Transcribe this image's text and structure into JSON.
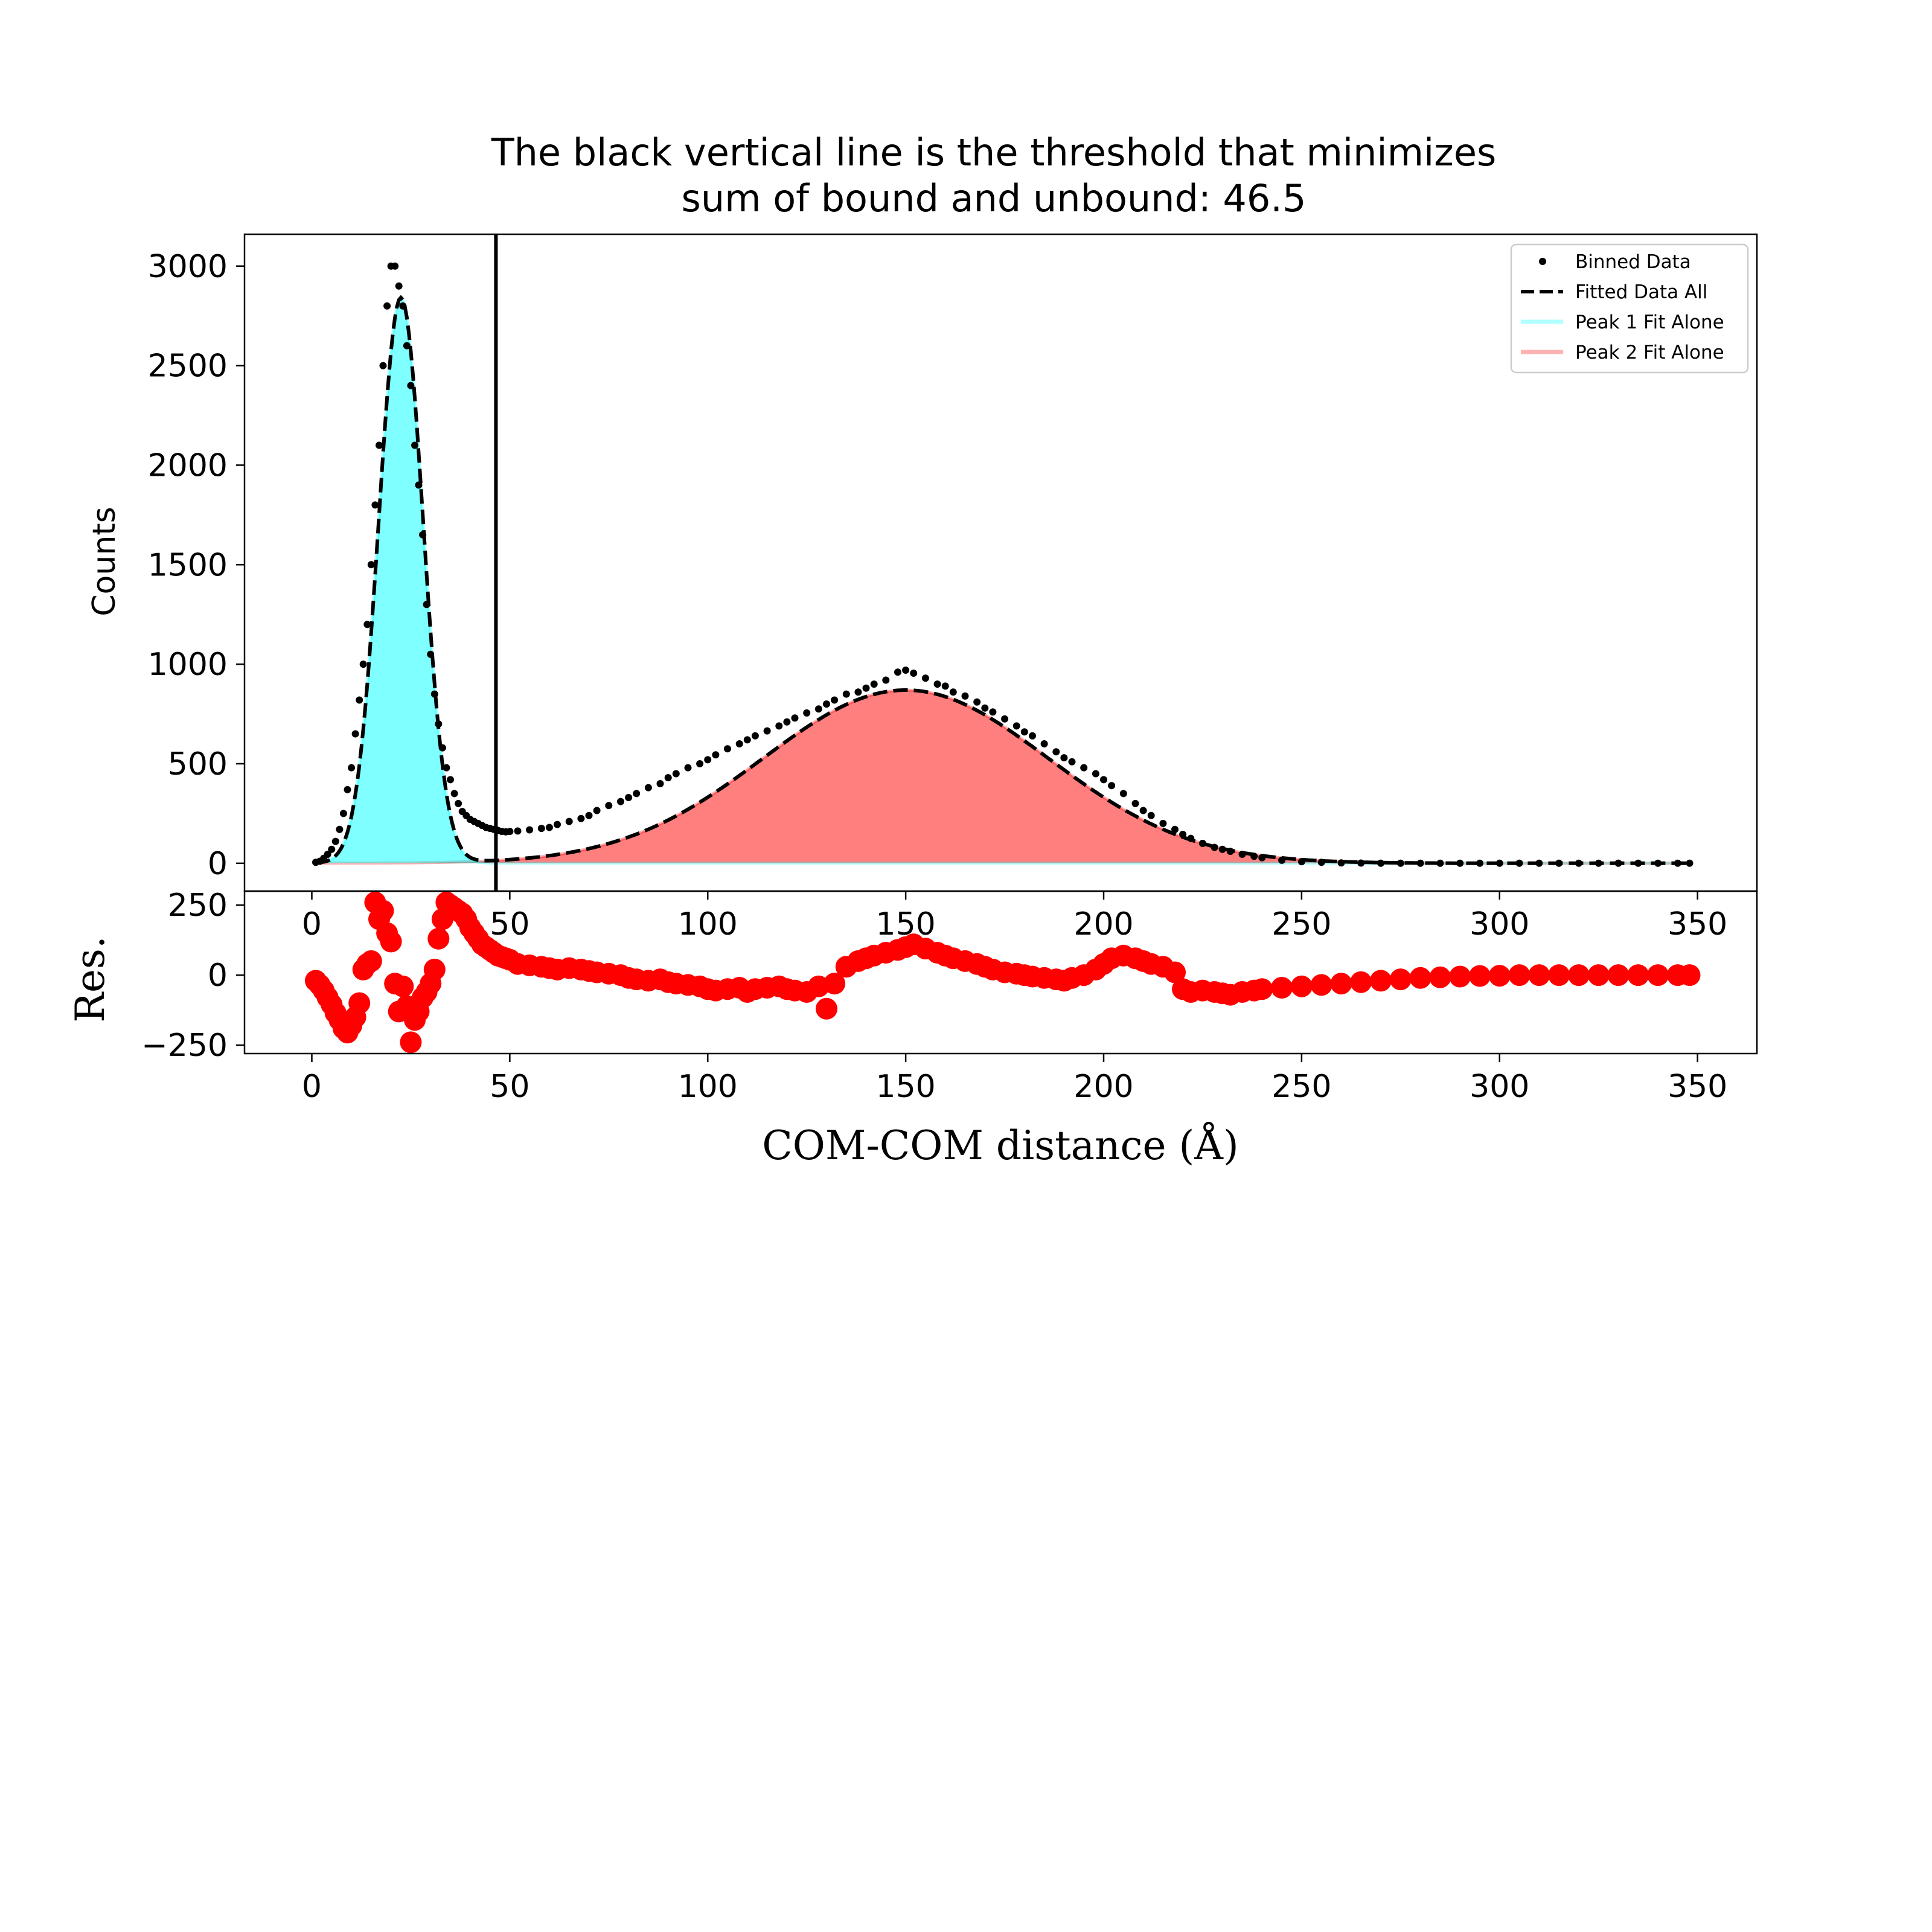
{
  "chart_data": [
    {
      "type": "scatter",
      "title": "The black vertical line is the threshold that minimizes\nsum of bound and unbound: 46.5",
      "xlabel": "",
      "ylabel": "Counts",
      "xlim": [
        -17,
        365
      ],
      "ylim": [
        -140,
        3160
      ],
      "xticks": [
        0,
        50,
        100,
        150,
        200,
        250,
        300,
        350
      ],
      "yticks": [
        0,
        500,
        1000,
        1500,
        2000,
        2500,
        3000
      ],
      "threshold": 46.5,
      "colors": {
        "binned": "#000000",
        "fit_all": "#000000",
        "peak1": "#00ffff",
        "peak2": "#ff0000",
        "threshold": "#000000"
      },
      "legend": {
        "position": "upper right",
        "entries": [
          "Binned Data",
          "Fitted Data All",
          "Peak 1 Fit Alone",
          "Peak 2 Fit Alone"
        ]
      },
      "peak1_params": {
        "amplitude": 2840,
        "center": 22.5,
        "sigma": 5.6
      },
      "peak2_params": {
        "amplitude": 870,
        "center": 150,
        "sigma": 36
      },
      "binned_data": {
        "x": [
          1,
          2,
          3,
          4,
          5,
          6,
          7,
          8,
          9,
          10,
          11,
          12,
          13,
          14,
          15,
          16,
          17,
          18,
          19,
          20,
          21,
          22,
          23,
          24,
          25,
          26,
          27,
          28,
          29,
          30,
          31,
          32,
          33,
          34,
          35,
          36,
          37,
          38,
          39,
          40,
          41,
          42,
          43,
          44,
          45,
          46,
          47,
          48,
          49,
          50,
          52,
          55,
          58,
          60,
          62,
          65,
          68,
          70,
          72,
          75,
          78,
          80,
          82,
          85,
          88,
          90,
          92,
          95,
          98,
          100,
          102,
          105,
          108,
          110,
          112,
          115,
          118,
          120,
          122,
          125,
          128,
          130,
          132,
          135,
          138,
          140,
          142,
          145,
          148,
          150,
          152,
          155,
          158,
          160,
          162,
          165,
          168,
          170,
          172,
          175,
          178,
          180,
          182,
          185,
          188,
          190,
          192,
          195,
          198,
          200,
          202,
          205,
          208,
          210,
          212,
          215,
          218,
          220,
          222,
          225,
          228,
          230,
          232,
          235,
          238,
          240,
          245,
          250,
          255,
          260,
          265,
          270,
          275,
          280,
          285,
          290,
          295,
          300,
          305,
          310,
          315,
          320,
          325,
          330,
          335,
          340,
          345,
          348
        ],
        "y": [
          5,
          10,
          25,
          45,
          70,
          110,
          170,
          250,
          370,
          480,
          650,
          820,
          1000,
          1200,
          1500,
          1800,
          2100,
          2500,
          2800,
          3000,
          3000,
          2900,
          2800,
          2600,
          2400,
          2100,
          1900,
          1650,
          1300,
          1050,
          850,
          700,
          580,
          480,
          420,
          350,
          300,
          260,
          240,
          220,
          210,
          200,
          190,
          180,
          175,
          170,
          165,
          160,
          158,
          160,
          162,
          168,
          175,
          180,
          195,
          210,
          225,
          240,
          265,
          290,
          310,
          330,
          350,
          380,
          400,
          430,
          450,
          480,
          500,
          520,
          545,
          575,
          600,
          620,
          640,
          665,
          690,
          710,
          730,
          755,
          775,
          800,
          820,
          850,
          860,
          880,
          900,
          920,
          960,
          970,
          955,
          930,
          900,
          890,
          860,
          840,
          810,
          780,
          760,
          725,
          690,
          660,
          640,
          600,
          560,
          530,
          510,
          480,
          450,
          420,
          390,
          350,
          300,
          265,
          240,
          200,
          170,
          145,
          125,
          100,
          80,
          70,
          60,
          45,
          35,
          28,
          15,
          8,
          5,
          2,
          1,
          0,
          0,
          0,
          0,
          0,
          0,
          0,
          0,
          0,
          0,
          0,
          0,
          0,
          0,
          0,
          0,
          0
        ]
      },
      "residuals": {
        "ylim": [
          -280,
          300
        ],
        "yticks": [
          -250,
          0,
          250
        ],
        "ylabel": "Res.",
        "xlabel": "COM-COM distance (Å)",
        "x": [
          1,
          2,
          3,
          4,
          5,
          6,
          7,
          8,
          9,
          10,
          11,
          12,
          13,
          14,
          15,
          16,
          17,
          18,
          19,
          20,
          21,
          22,
          23,
          24,
          25,
          26,
          27,
          28,
          29,
          30,
          31,
          32,
          33,
          34,
          35,
          36,
          37,
          38,
          39,
          40,
          41,
          42,
          43,
          44,
          45,
          46,
          47,
          48,
          49,
          50,
          52,
          55,
          58,
          60,
          62,
          65,
          68,
          70,
          72,
          75,
          78,
          80,
          82,
          85,
          88,
          90,
          92,
          95,
          98,
          100,
          102,
          105,
          108,
          110,
          112,
          115,
          118,
          120,
          122,
          125,
          128,
          130,
          132,
          135,
          138,
          140,
          142,
          145,
          148,
          150,
          152,
          155,
          158,
          160,
          162,
          165,
          168,
          170,
          172,
          175,
          178,
          180,
          182,
          185,
          188,
          190,
          192,
          195,
          198,
          200,
          202,
          205,
          208,
          210,
          212,
          215,
          218,
          220,
          222,
          225,
          228,
          230,
          232,
          235,
          238,
          240,
          245,
          250,
          255,
          260,
          265,
          270,
          275,
          280,
          285,
          290,
          295,
          300,
          305,
          310,
          315,
          320,
          325,
          330,
          335,
          340,
          345,
          348
        ],
        "y": [
          -20,
          -35,
          -55,
          -80,
          -105,
          -135,
          -160,
          -190,
          -205,
          -180,
          -150,
          -100,
          20,
          40,
          50,
          260,
          200,
          230,
          150,
          120,
          -30,
          -130,
          -40,
          -110,
          -240,
          -160,
          -130,
          -80,
          -60,
          -30,
          20,
          130,
          200,
          260,
          250,
          240,
          230,
          220,
          200,
          170,
          150,
          130,
          110,
          100,
          90,
          80,
          70,
          65,
          60,
          55,
          40,
          35,
          30,
          25,
          20,
          25,
          20,
          15,
          10,
          5,
          0,
          -10,
          -15,
          -20,
          -15,
          -25,
          -30,
          -35,
          -40,
          -50,
          -55,
          -50,
          -45,
          -60,
          -50,
          -45,
          -40,
          -50,
          -55,
          -60,
          -40,
          -120,
          -30,
          30,
          50,
          60,
          70,
          80,
          90,
          100,
          110,
          95,
          80,
          70,
          60,
          50,
          40,
          30,
          20,
          10,
          5,
          0,
          -5,
          -10,
          -15,
          -20,
          -10,
          0,
          20,
          40,
          60,
          70,
          60,
          50,
          40,
          30,
          10,
          -50,
          -60,
          -55,
          -60,
          -65,
          -70,
          -60,
          -55,
          -50,
          -45,
          -40,
          -35,
          -30,
          -25,
          -20,
          -15,
          -10,
          -8,
          -5,
          -3,
          -2,
          0,
          0,
          0,
          0,
          0,
          0,
          0,
          0,
          0,
          0
        ]
      }
    }
  ]
}
